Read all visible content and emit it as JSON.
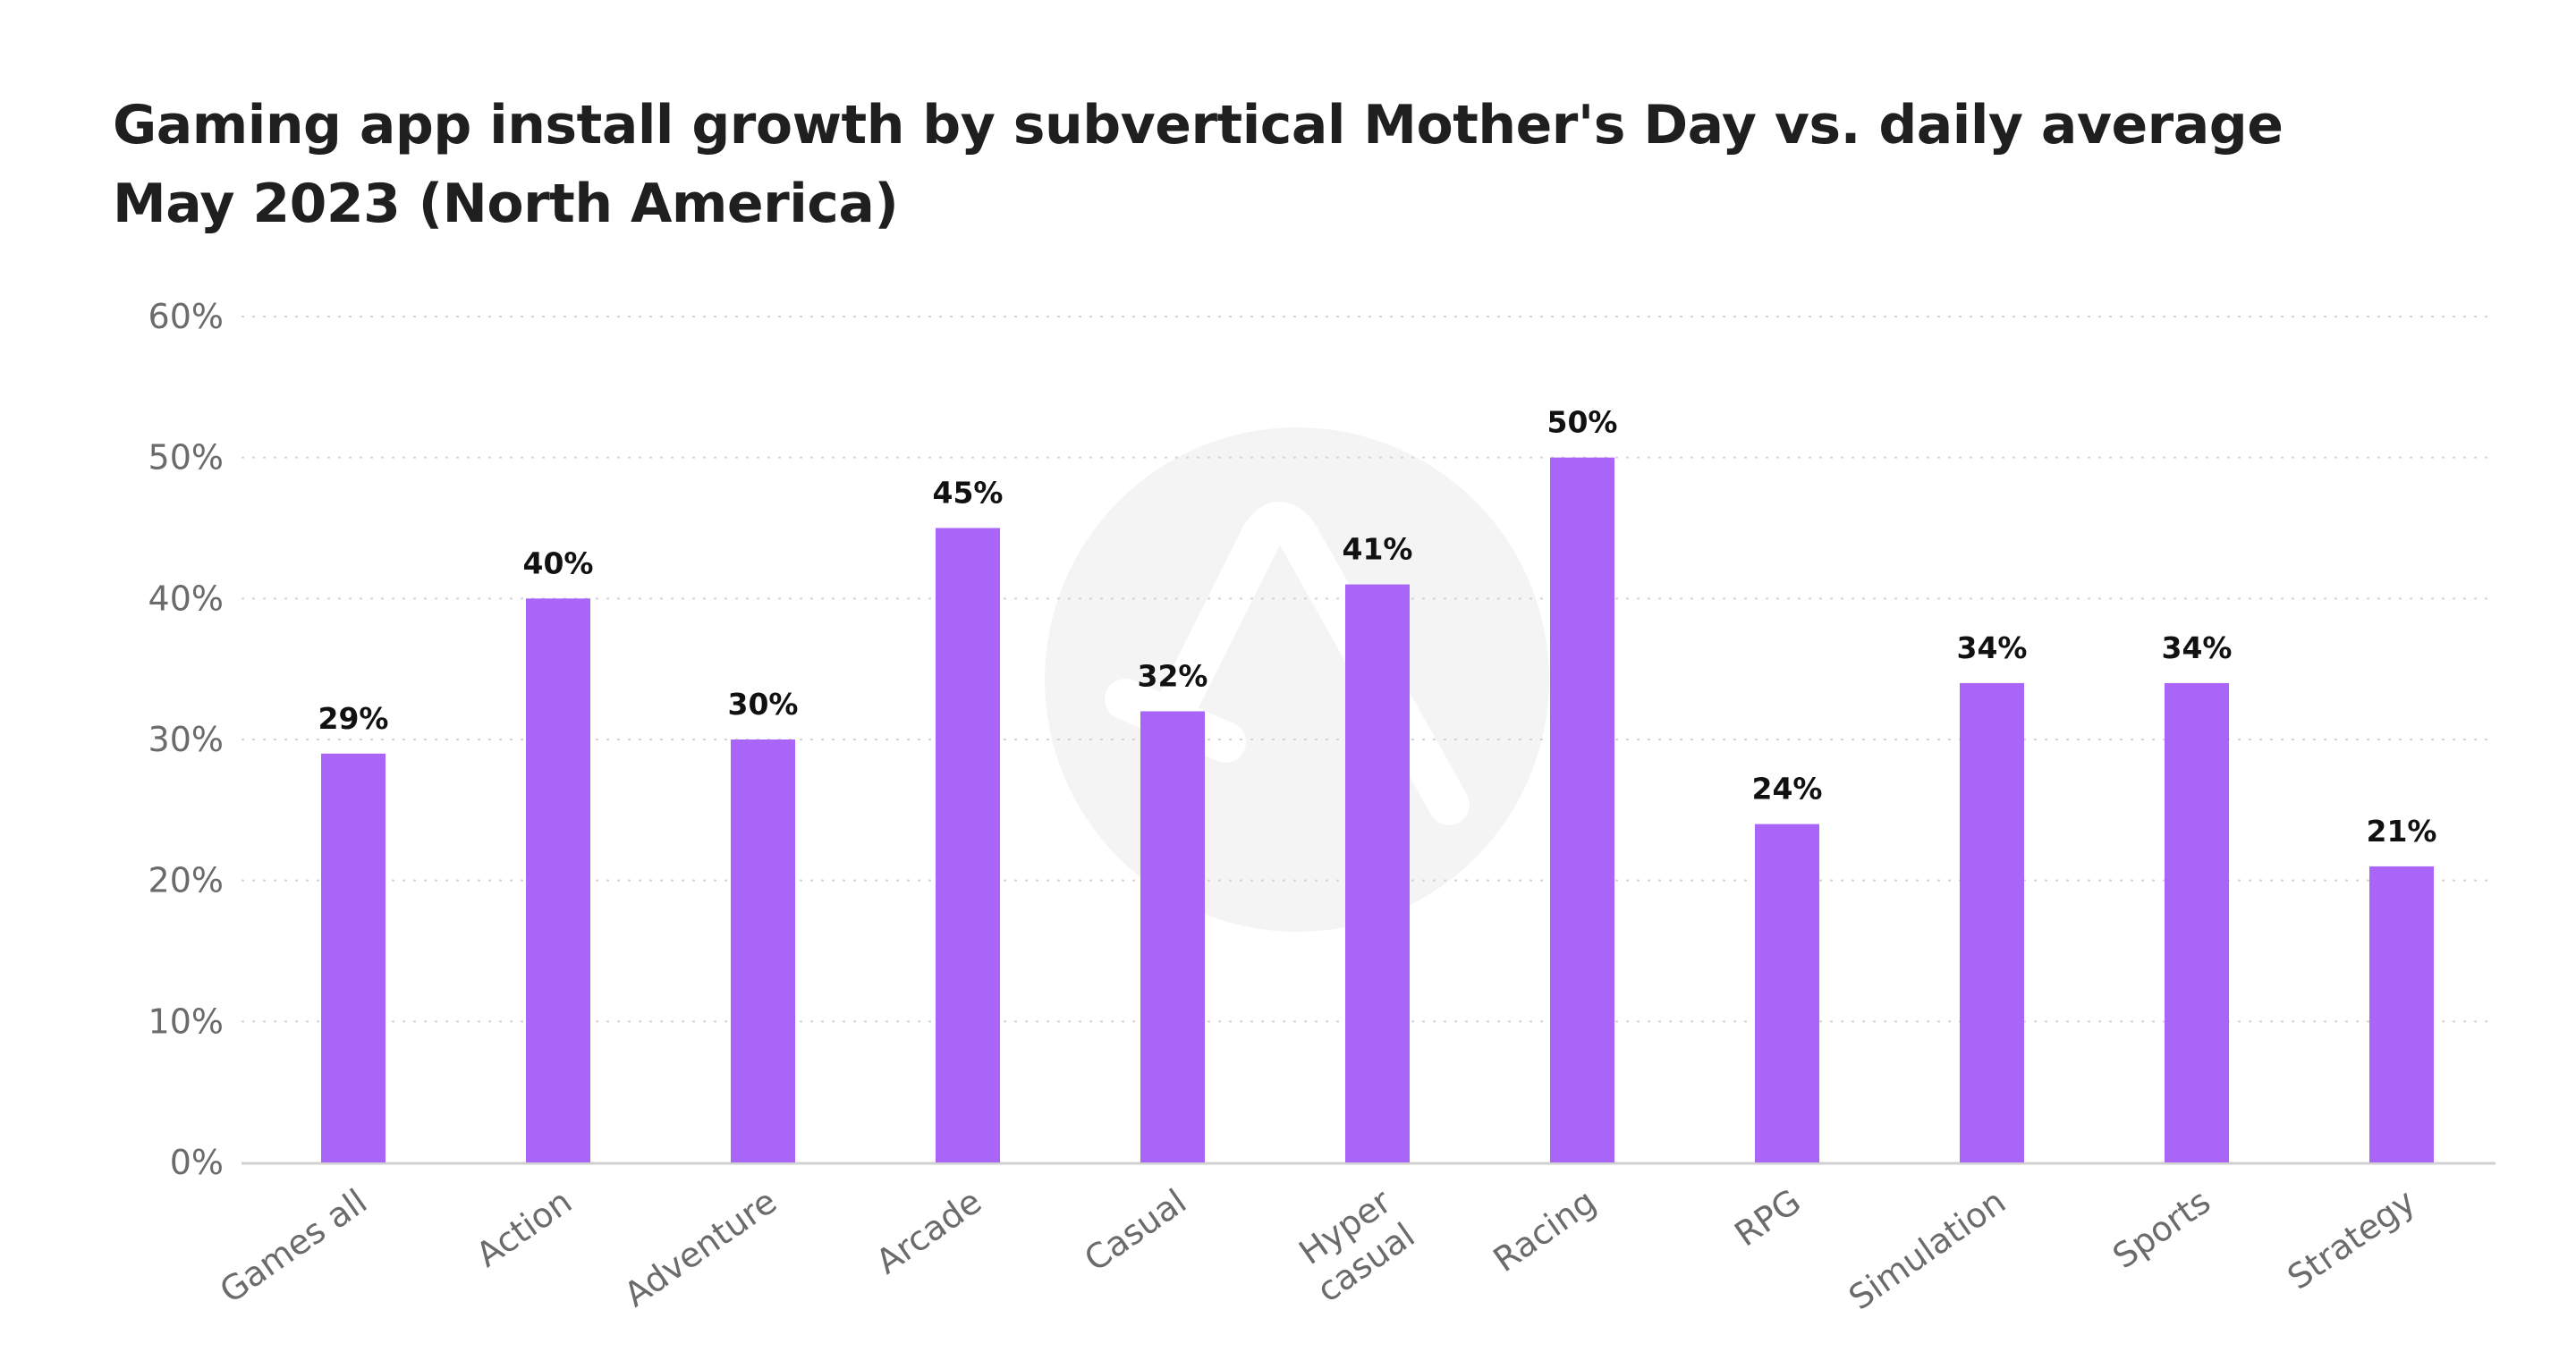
{
  "chart_data": {
    "type": "bar",
    "title_lines": [
      "Gaming app install growth by subvertical Mother's Day vs. daily average",
      "May 2023 (North America)"
    ],
    "categories": [
      [
        "Games all"
      ],
      [
        "Action"
      ],
      [
        "Adventure"
      ],
      [
        "Arcade"
      ],
      [
        "Casual"
      ],
      [
        "Hyper",
        "casual"
      ],
      [
        "Racing"
      ],
      [
        "RPG"
      ],
      [
        "Simulation"
      ],
      [
        "Sports"
      ],
      [
        "Strategy"
      ]
    ],
    "values": [
      29,
      40,
      30,
      45,
      32,
      41,
      50,
      24,
      34,
      34,
      21
    ],
    "value_labels": [
      "29%",
      "40%",
      "30%",
      "45%",
      "32%",
      "41%",
      "50%",
      "24%",
      "34%",
      "34%",
      "21%"
    ],
    "yticks": [
      0,
      10,
      20,
      30,
      40,
      50,
      60
    ],
    "ytick_labels": [
      "0%",
      "10%",
      "20%",
      "30%",
      "40%",
      "50%",
      "60%"
    ],
    "ylim": [
      0,
      60
    ],
    "xlabel": "",
    "ylabel": "",
    "grid": "horizontal dotted",
    "legend": "none",
    "colors": {
      "bar": "#a865f7",
      "grid": "#d4d4d4",
      "axis": "#d0d0d0",
      "tick_text": "#6b6b6b",
      "value_text": "#111111",
      "title_text": "#1f1f1f",
      "watermark": "#f4f4f4"
    },
    "watermark_icon": "logo-watermark-icon"
  }
}
